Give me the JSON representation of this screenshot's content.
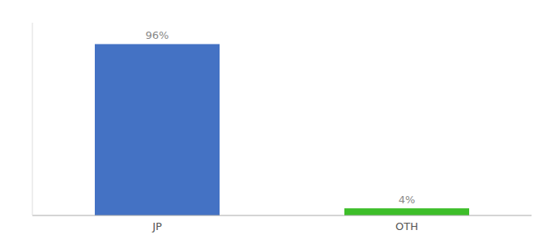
{
  "chart_data": {
    "type": "bar",
    "categories": [
      "JP",
      "OTH"
    ],
    "values": [
      96,
      4
    ],
    "value_labels": [
      "96%",
      "4%"
    ],
    "colors": [
      "#4472C4",
      "#3DBE29"
    ],
    "ylim": [
      0,
      108
    ],
    "data_labels": true,
    "tick_labels": "x"
  }
}
